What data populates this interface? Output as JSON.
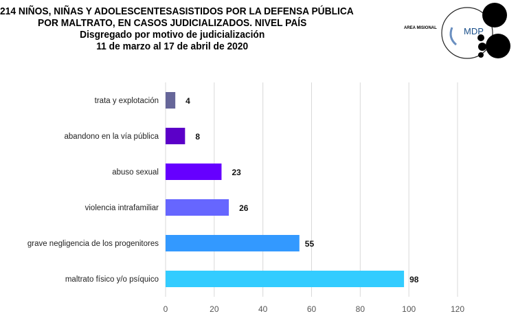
{
  "header": {
    "title_line1": "214 NIÑOS, NIÑAS Y ADOLESCENTESASISTIDOS POR LA DEFENSA PÚBLICA",
    "title_line2": "POR MALTRATO, EN CASOS JUDICIALIZADOS. NIVEL PAÍS",
    "subtitle": "Disgregado por motivo de judicialización",
    "date_range": "11 de marzo al 17 de abril de 2020"
  },
  "logo": {
    "area_label": "AREA MISIONAL",
    "brand": "MDP"
  },
  "chart_data": {
    "type": "bar",
    "orientation": "horizontal",
    "categories": [
      "trata y explotación",
      "abandono en la vía pública",
      "abuso sexual",
      "violencia intrafamiliar",
      "grave negligencia de los progenitores",
      "maltrato físico y/o psíquico"
    ],
    "values": [
      4,
      8,
      23,
      26,
      55,
      98
    ],
    "colors": [
      "#666699",
      "#5b00c8",
      "#6600ff",
      "#6666ff",
      "#3399ff",
      "#33ccff"
    ],
    "xlim": [
      0,
      120
    ],
    "xticks": [
      0,
      20,
      40,
      60,
      80,
      100,
      120
    ],
    "grid": true,
    "data_labels": true
  }
}
